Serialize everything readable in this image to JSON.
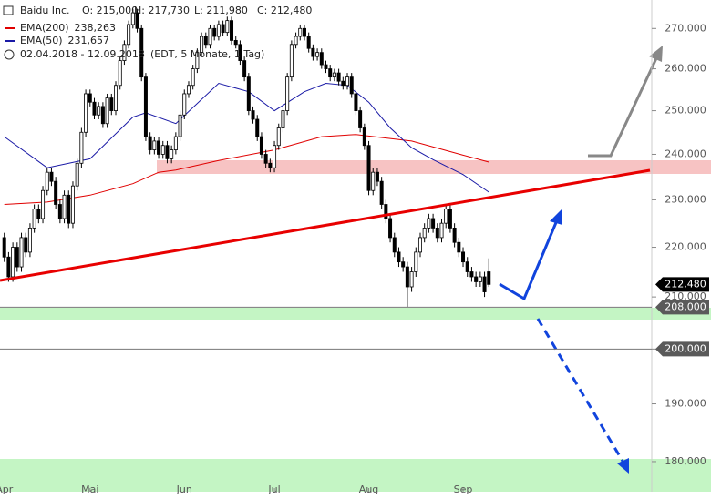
{
  "chart_data": {
    "type": "candlestick",
    "title": "Baidu Inc.",
    "ohlc_labels": [
      "O: 215,000",
      "H: 217,730",
      "L: 211,980",
      "C: 212,480"
    ],
    "date_range": "02.04.2018 - 12.09.2018",
    "period": "(EDT, 5 Monate, 1 Tag)",
    "log_scale": true,
    "xlim": [
      -1,
      151
    ],
    "xticks": [
      {
        "value": 0,
        "label": "Apr"
      },
      {
        "value": 20,
        "label": "Mai"
      },
      {
        "value": 42,
        "label": "Jun"
      },
      {
        "value": 63,
        "label": "Jul"
      },
      {
        "value": 85,
        "label": "Aug"
      },
      {
        "value": 107,
        "label": "Sep"
      }
    ],
    "ylim": [
      175,
      277.3
    ],
    "yticks": [
      {
        "value": 180,
        "label": "180,000"
      },
      {
        "value": 190,
        "label": "190,000"
      },
      {
        "value": 200,
        "label": "200,000"
      },
      {
        "value": 210,
        "label": "210,000"
      },
      {
        "value": 220,
        "label": "220,000"
      },
      {
        "value": 230,
        "label": "230,000"
      },
      {
        "value": 240,
        "label": "240,000"
      },
      {
        "value": 250,
        "label": "250,000"
      },
      {
        "value": 260,
        "label": "260,000"
      },
      {
        "value": 270,
        "label": "270,000"
      }
    ],
    "up_color": "#ffffff",
    "down_color": "#000000",
    "open": [
      222,
      218,
      214,
      220,
      216,
      222,
      219,
      224,
      228,
      226,
      232,
      236,
      234,
      229,
      226,
      231,
      225,
      233,
      238,
      245,
      254,
      252,
      249,
      251,
      247,
      253,
      250,
      256,
      262,
      266,
      271,
      274,
      270,
      258,
      244,
      241,
      243,
      240,
      242,
      239,
      241,
      244,
      249,
      254,
      256,
      260,
      264,
      268,
      266,
      270,
      268,
      271,
      269,
      272,
      267,
      266,
      262,
      258,
      250,
      248,
      244,
      240,
      238,
      237,
      242,
      246,
      250,
      258,
      266,
      268,
      270,
      268,
      265,
      263,
      264,
      261,
      260,
      258,
      259,
      257,
      256,
      258,
      254,
      250,
      246,
      242,
      232,
      236,
      234,
      229,
      226,
      222,
      219,
      217,
      216,
      212,
      215,
      219,
      222,
      224,
      226,
      224,
      222,
      225,
      228,
      224,
      221,
      219,
      217,
      215,
      214,
      213,
      214,
      215
    ],
    "high": [
      223,
      219,
      221,
      221,
      223,
      223,
      225,
      229,
      229,
      233,
      237,
      237,
      235,
      230,
      232,
      232,
      234,
      239,
      246,
      255,
      255,
      253,
      252,
      252,
      254,
      254,
      257,
      263,
      267,
      272,
      275,
      275,
      271,
      259,
      245,
      244,
      244,
      243,
      243,
      242,
      245,
      250,
      255,
      257,
      261,
      265,
      269,
      269,
      271,
      271,
      272,
      272,
      273,
      273,
      268,
      267,
      263,
      259,
      251,
      249,
      245,
      241,
      239,
      243,
      247,
      251,
      259,
      267,
      269,
      271,
      271,
      269,
      266,
      265,
      265,
      262,
      261,
      260,
      260,
      258,
      259,
      259,
      255,
      251,
      247,
      243,
      237,
      237,
      235,
      230,
      227,
      223,
      220,
      218,
      217,
      216,
      220,
      223,
      225,
      227,
      227,
      225,
      226,
      229,
      229,
      225,
      222,
      220,
      218,
      216,
      215,
      215,
      215,
      217.73
    ],
    "low": [
      217,
      213,
      213,
      215,
      215,
      218,
      218,
      223,
      225,
      225,
      231,
      233,
      228,
      225,
      225,
      224,
      224,
      232,
      237,
      244,
      251,
      248,
      248,
      246,
      246,
      249,
      249,
      255,
      261,
      265,
      270,
      269,
      257,
      243,
      240,
      240,
      239,
      239,
      238,
      238,
      240,
      243,
      248,
      253,
      255,
      259,
      263,
      265,
      265,
      267,
      267,
      268,
      268,
      266,
      265,
      261,
      257,
      249,
      247,
      243,
      239,
      237,
      236,
      236,
      241,
      245,
      249,
      257,
      265,
      267,
      267,
      264,
      262,
      262,
      260,
      259,
      257,
      257,
      256,
      255,
      255,
      253,
      249,
      245,
      241,
      231,
      231,
      233,
      228,
      225,
      221,
      218,
      216,
      215,
      208,
      211,
      214,
      218,
      221,
      223,
      223,
      221,
      221,
      224,
      223,
      220,
      218,
      216,
      214,
      213,
      212,
      212,
      210,
      211.98
    ],
    "close": [
      218,
      214,
      220,
      216,
      222,
      219,
      224,
      228,
      226,
      232,
      236,
      234,
      229,
      226,
      231,
      225,
      233,
      238,
      245,
      254,
      252,
      249,
      251,
      247,
      253,
      250,
      256,
      262,
      266,
      271,
      274,
      270,
      258,
      244,
      241,
      243,
      240,
      242,
      239,
      241,
      244,
      249,
      254,
      256,
      260,
      264,
      268,
      266,
      270,
      268,
      271,
      269,
      272,
      267,
      266,
      262,
      258,
      250,
      248,
      244,
      240,
      238,
      237,
      242,
      246,
      250,
      258,
      266,
      268,
      270,
      268,
      265,
      263,
      264,
      261,
      260,
      258,
      259,
      257,
      256,
      258,
      254,
      250,
      246,
      242,
      232,
      236,
      234,
      229,
      226,
      222,
      219,
      217,
      216,
      212,
      215,
      219,
      222,
      224,
      226,
      224,
      222,
      225,
      228,
      224,
      221,
      219,
      217,
      215,
      214,
      213,
      214,
      211,
      212.48
    ],
    "series": [
      {
        "name": "EMA(200)",
        "value_label": "238,263",
        "color": "#e00000",
        "x": [
          0,
          10,
          20,
          30,
          36,
          40,
          50,
          63,
          74,
          82,
          95,
          107,
          113
        ],
        "values": [
          229,
          229.5,
          231,
          233.5,
          236,
          236.5,
          238.6,
          241,
          244,
          244.5,
          243,
          239.8,
          238.263
        ]
      },
      {
        "name": "EMA(50)",
        "value_label": "231,657",
        "color": "#1a1aa6",
        "x": [
          0,
          10,
          20,
          30,
          33,
          40,
          50,
          57,
          63,
          70,
          75,
          80,
          85,
          90,
          95,
          100,
          107,
          113
        ],
        "values": [
          244,
          237,
          239,
          248.5,
          249.5,
          247,
          256.5,
          254.5,
          250,
          254.5,
          256.5,
          256,
          252,
          246,
          241.5,
          238.8,
          235.5,
          231.657
        ]
      }
    ],
    "levels": [
      {
        "value": 208,
        "label": "208,000"
      },
      {
        "value": 200,
        "label": "200,000"
      }
    ],
    "last_price": {
      "value": 212.48,
      "label": "212,480"
    }
  }
}
